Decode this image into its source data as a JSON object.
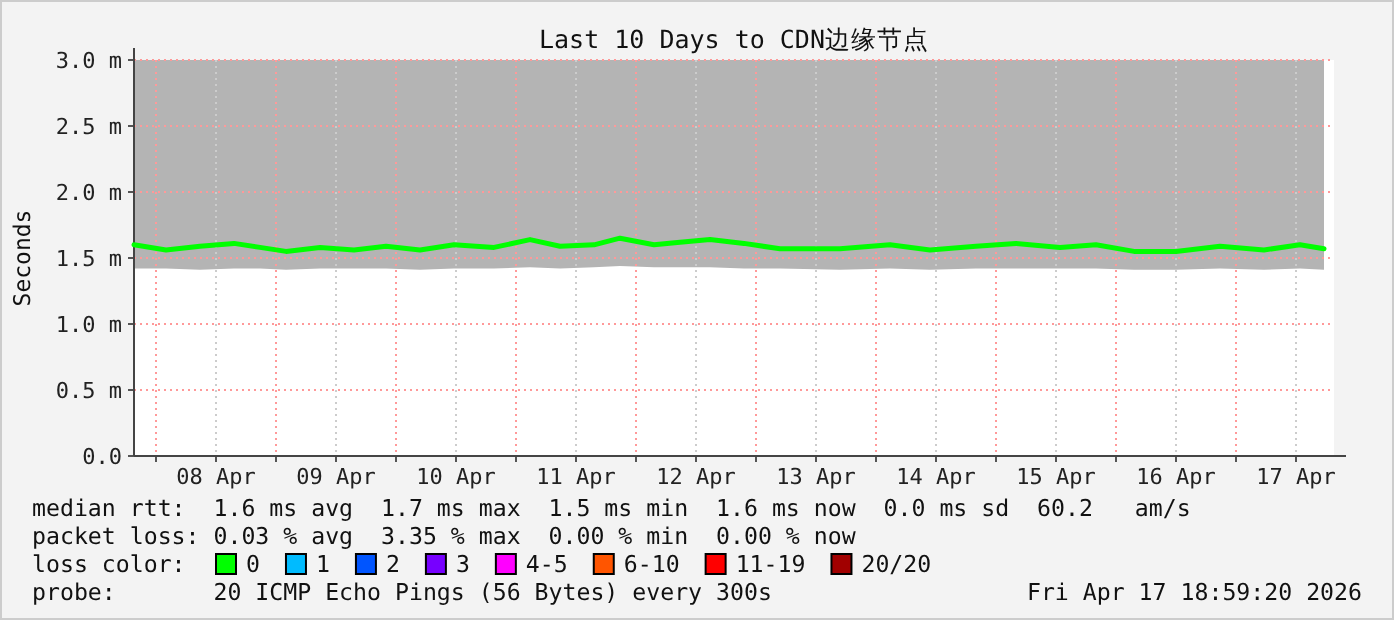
{
  "chart_data": {
    "type": "line",
    "title": "Last 10 Days to CDN边缘节点",
    "ylabel": "Seconds",
    "legend_title": "loss color:",
    "legend": "bottom",
    "grid": true,
    "xlim": [
      "2026-04-07T19:36",
      "2026-04-17T19:36"
    ],
    "xticks": [
      {
        "value": "2026-04-08T00:00",
        "label": null
      },
      {
        "value": "2026-04-08T12:00",
        "label": "08 Apr"
      },
      {
        "value": "2026-04-09T00:00",
        "label": null
      },
      {
        "value": "2026-04-09T12:00",
        "label": "09 Apr"
      },
      {
        "value": "2026-04-10T00:00",
        "label": null
      },
      {
        "value": "2026-04-10T12:00",
        "label": "10 Apr"
      },
      {
        "value": "2026-04-11T00:00",
        "label": null
      },
      {
        "value": "2026-04-11T12:00",
        "label": "11 Apr"
      },
      {
        "value": "2026-04-12T00:00",
        "label": null
      },
      {
        "value": "2026-04-12T12:00",
        "label": "12 Apr"
      },
      {
        "value": "2026-04-13T00:00",
        "label": null
      },
      {
        "value": "2026-04-13T12:00",
        "label": "13 Apr"
      },
      {
        "value": "2026-04-14T00:00",
        "label": null
      },
      {
        "value": "2026-04-14T12:00",
        "label": "14 Apr"
      },
      {
        "value": "2026-04-15T00:00",
        "label": null
      },
      {
        "value": "2026-04-15T12:00",
        "label": "15 Apr"
      },
      {
        "value": "2026-04-16T00:00",
        "label": null
      },
      {
        "value": "2026-04-16T12:00",
        "label": "16 Apr"
      },
      {
        "value": "2026-04-17T00:00",
        "label": null
      },
      {
        "value": "2026-04-17T12:00",
        "label": "17 Apr"
      }
    ],
    "ylim": [
      0,
      3
    ],
    "yticks": [
      {
        "value": 0,
        "label": "0.0"
      },
      {
        "value": 0.5,
        "label": "0.5 m"
      },
      {
        "value": 1,
        "label": "1.0 m"
      },
      {
        "value": 1.5,
        "label": "1.5 m"
      },
      {
        "value": 2,
        "label": "2.0 m"
      },
      {
        "value": 2.5,
        "label": "2.5 m"
      },
      {
        "value": 3,
        "label": "3.0 m"
      }
    ],
    "x": [
      "2026-04-07T19:36",
      "2026-04-08T02:00",
      "2026-04-08T08:48",
      "2026-04-08T15:36",
      "2026-04-08T20:48",
      "2026-04-09T02:00",
      "2026-04-09T08:48",
      "2026-04-09T15:36",
      "2026-04-09T22:00",
      "2026-04-10T04:48",
      "2026-04-10T11:36",
      "2026-04-10T19:36",
      "2026-04-11T02:48",
      "2026-04-11T08:48",
      "2026-04-11T15:36",
      "2026-04-11T20:48",
      "2026-04-12T03:36",
      "2026-04-12T08:48",
      "2026-04-12T14:48",
      "2026-04-12T21:36",
      "2026-04-13T04:48",
      "2026-04-13T16:48",
      "2026-04-14T02:48",
      "2026-04-14T10:48",
      "2026-04-14T20:00",
      "2026-04-15T04:00",
      "2026-04-15T12:48",
      "2026-04-15T20:00",
      "2026-04-16T03:36",
      "2026-04-16T12:00",
      "2026-04-16T20:48",
      "2026-04-17T05:36",
      "2026-04-17T12:48",
      "2026-04-17T17:36"
    ],
    "series": [
      {
        "name": "0",
        "color": "#00ff00",
        "values": [
          1.6,
          1.56,
          1.59,
          1.61,
          1.58,
          1.55,
          1.58,
          1.56,
          1.59,
          1.56,
          1.6,
          1.58,
          1.64,
          1.59,
          1.6,
          1.65,
          1.6,
          1.62,
          1.64,
          1.61,
          1.57,
          1.57,
          1.6,
          1.56,
          1.59,
          1.61,
          1.58,
          1.6,
          1.55,
          1.55,
          1.59,
          1.56,
          1.6,
          1.57
        ],
        "lower": [
          1.42,
          1.42,
          1.41,
          1.42,
          1.42,
          1.41,
          1.42,
          1.42,
          1.42,
          1.41,
          1.42,
          1.42,
          1.43,
          1.42,
          1.43,
          1.44,
          1.43,
          1.43,
          1.43,
          1.42,
          1.42,
          1.41,
          1.42,
          1.41,
          1.42,
          1.42,
          1.42,
          1.42,
          1.41,
          1.41,
          1.42,
          1.41,
          1.42,
          1.41
        ],
        "upper": [
          3,
          3,
          3,
          3,
          3,
          3,
          3,
          3,
          3,
          3,
          3,
          3,
          3,
          3,
          3,
          3,
          3,
          3,
          3,
          3,
          3,
          3,
          3,
          3,
          3,
          3,
          3,
          3,
          3,
          3,
          3,
          3,
          3,
          3
        ]
      },
      {
        "name": "1",
        "color": "#00bbff",
        "values": [
          null,
          null,
          null,
          null,
          null,
          null,
          null,
          null,
          null,
          null,
          null,
          null,
          null,
          null,
          null,
          null,
          null,
          null,
          null,
          null,
          null,
          null,
          null,
          null,
          null,
          null,
          null,
          null,
          null,
          null,
          null,
          null,
          null,
          null
        ]
      },
      {
        "name": "2",
        "color": "#0055ff",
        "values": [
          null,
          null,
          null,
          null,
          null,
          null,
          null,
          null,
          null,
          null,
          null,
          null,
          null,
          null,
          null,
          null,
          null,
          null,
          null,
          null,
          null,
          null,
          null,
          null,
          null,
          null,
          null,
          null,
          null,
          null,
          null,
          null,
          null,
          null
        ]
      },
      {
        "name": "3",
        "color": "#7700ff",
        "values": [
          null,
          null,
          null,
          null,
          null,
          null,
          null,
          null,
          null,
          null,
          null,
          null,
          null,
          null,
          null,
          null,
          null,
          null,
          null,
          null,
          null,
          null,
          null,
          null,
          null,
          null,
          null,
          null,
          null,
          null,
          null,
          null,
          null,
          null
        ]
      },
      {
        "name": "4-5",
        "color": "#ff00ff",
        "values": [
          null,
          null,
          null,
          null,
          null,
          null,
          null,
          null,
          null,
          null,
          null,
          null,
          null,
          null,
          null,
          null,
          null,
          null,
          null,
          null,
          null,
          null,
          null,
          null,
          null,
          null,
          null,
          null,
          null,
          null,
          null,
          null,
          null,
          null
        ]
      },
      {
        "name": "6-10",
        "color": "#ff5500",
        "values": [
          null,
          null,
          null,
          null,
          null,
          null,
          null,
          null,
          null,
          null,
          null,
          null,
          null,
          null,
          null,
          null,
          null,
          null,
          null,
          null,
          null,
          null,
          null,
          null,
          null,
          null,
          null,
          null,
          null,
          null,
          null,
          null,
          null,
          null
        ]
      },
      {
        "name": "11-19",
        "color": "#ff0000",
        "values": [
          null,
          null,
          null,
          null,
          null,
          null,
          null,
          null,
          null,
          null,
          null,
          null,
          null,
          null,
          null,
          null,
          null,
          null,
          null,
          null,
          null,
          null,
          null,
          null,
          null,
          null,
          null,
          null,
          null,
          null,
          null,
          null,
          null,
          null
        ]
      },
      {
        "name": "20/20",
        "color": "#a10000",
        "values": [
          null,
          null,
          null,
          null,
          null,
          null,
          null,
          null,
          null,
          null,
          null,
          null,
          null,
          null,
          null,
          null,
          null,
          null,
          null,
          null,
          null,
          null,
          null,
          null,
          null,
          null,
          null,
          null,
          null,
          null,
          null,
          null,
          null,
          null
        ]
      }
    ],
    "annotations": [
      "median rtt:  1.6 ms avg  1.7 ms max  1.5 ms min  1.6 ms now  0.0 ms sd  60.2   am/s",
      "packet loss: 0.03 % avg  3.35 % max  0.00 % min  0.00 % now",
      "probe:       20 ICMP Echo Pings (56 Bytes) every 300s",
      "Fri Apr 17 18:59:20 2026"
    ]
  }
}
